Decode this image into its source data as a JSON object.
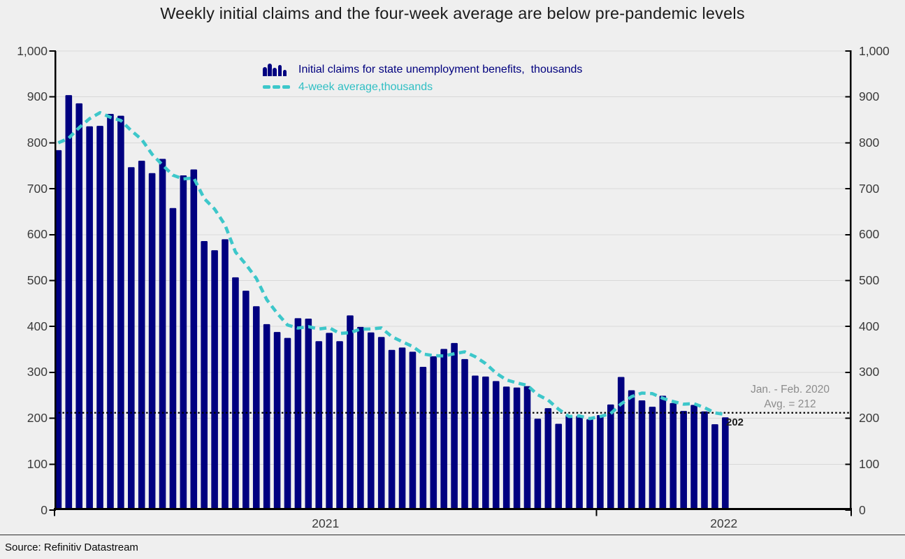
{
  "title": "Weekly initial claims and the four-week average are below pre-pandemic levels",
  "legend": {
    "bars_label": "Initial claims for state unemployment benefits,  thousands",
    "line_label": "4-week average,thousands"
  },
  "annotation": {
    "line1": "Jan. - Feb. 2020",
    "line2": "Avg. = 212",
    "value_label": "202"
  },
  "source": "Source: Refinitiv Datastream",
  "colors": {
    "bar": "#000080",
    "line": "#3dc7ca",
    "background": "#efefef",
    "grid": "#d8d8d8",
    "axis": "#000000",
    "tick_label": "#3b3b3b",
    "annotation_text": "#8c8c8c",
    "value_label": "#1c1c1c",
    "reference_line": "#000000",
    "title": "#1b1b1b",
    "legend_bars_text": "#00007e",
    "legend_line_text": "#2fbfc4",
    "source_text": "#0a0a0a"
  },
  "chart_data": {
    "type": "bar",
    "title": "Weekly initial claims and the four-week average are below pre-pandemic levels",
    "y_axis": {
      "min": 0,
      "max": 1000,
      "tick_step": 100,
      "tick_labels": [
        "0",
        "100",
        "200",
        "300",
        "400",
        "500",
        "600",
        "700",
        "800",
        "900",
        "1,000"
      ],
      "label_sides": "both",
      "grid": true
    },
    "x_axis": {
      "unit": "week",
      "tick_labels": [
        "2021",
        "2022"
      ],
      "weeks_shown": 65,
      "weeks_in_2021": 52
    },
    "reference_line": {
      "value": 212,
      "style": "dotted",
      "label": "Jan. - Feb. 2020 Avg. = 212"
    },
    "last_bar_value_label": "202",
    "series": [
      {
        "name": "Initial claims for state unemployment benefits, thousands",
        "type": "bar",
        "color": "#000080",
        "values": [
          784,
          904,
          886,
          836,
          837,
          863,
          859,
          747,
          761,
          734,
          765,
          658,
          729,
          742,
          586,
          566,
          590,
          507,
          478,
          444,
          405,
          388,
          375,
          418,
          417,
          368,
          386,
          368,
          424,
          399,
          387,
          377,
          349,
          354,
          345,
          312,
          335,
          351,
          364,
          329,
          293,
          291,
          281,
          269,
          267,
          270,
          199,
          222,
          188,
          206,
          205,
          198,
          207,
          230,
          290,
          261,
          239,
          225,
          249,
          233,
          216,
          229,
          215,
          187,
          202
        ]
      },
      {
        "name": "4-week average, thousands",
        "type": "line",
        "style": "dashed",
        "color": "#3dc7ca",
        "values": [
          800,
          810,
          833,
          852.5,
          865.75,
          855.5,
          848.75,
          826.5,
          807.5,
          775.25,
          751.75,
          729.5,
          721.5,
          723.5,
          678.75,
          655.75,
          621,
          562.25,
          535.25,
          504.75,
          458.5,
          428.75,
          403,
          396.5,
          399.5,
          394.5,
          397.25,
          384.75,
          386.5,
          394.25,
          394.5,
          396.75,
          378,
          366.75,
          356.25,
          340,
          336.5,
          335.75,
          340.5,
          344.75,
          334.25,
          319.25,
          298.5,
          283.5,
          277,
          271.75,
          251.25,
          239.5,
          219.75,
          203.75,
          205.25,
          199.25,
          204,
          210,
          231.25,
          247,
          255,
          253.75,
          243.5,
          236.5,
          230.75,
          231.75,
          223.25,
          211.75,
          208.25
        ]
      }
    ]
  }
}
